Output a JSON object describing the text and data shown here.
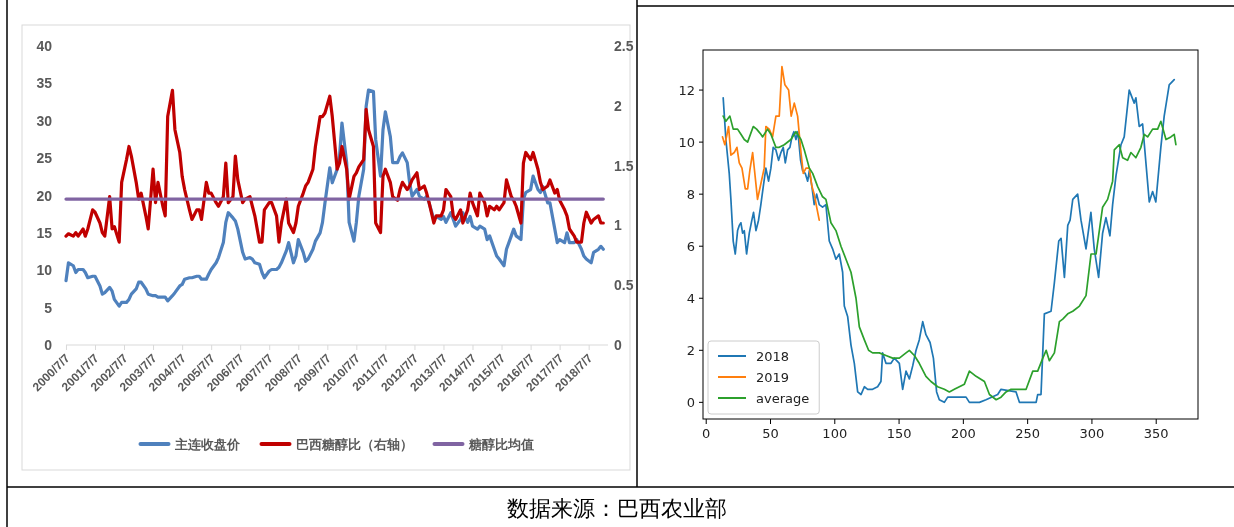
{
  "chart_data": [
    {
      "type": "line",
      "x": [
        "2000-07",
        "2000-08",
        "2000-10",
        "2000-11",
        "2000-12",
        "2001-02",
        "2001-03",
        "2001-04",
        "2001-06",
        "2001-07",
        "2001-09",
        "2001-10",
        "2001-11",
        "2002-01",
        "2002-02",
        "2002-03",
        "2002-05",
        "2002-06",
        "2002-08",
        "2002-09",
        "2002-10",
        "2002-12",
        "2003-01",
        "2003-02",
        "2003-04",
        "2003-05",
        "2003-07",
        "2003-08",
        "2003-09",
        "2003-11",
        "2003-12",
        "2004-01",
        "2004-03",
        "2004-04",
        "2004-06",
        "2004-07",
        "2004-08",
        "2004-10",
        "2004-11",
        "2005-01",
        "2005-02",
        "2005-03",
        "2005-05",
        "2005-06",
        "2005-07",
        "2005-09",
        "2005-10",
        "2005-12",
        "2006-01",
        "2006-02",
        "2006-04",
        "2006-05",
        "2006-06",
        "2006-08",
        "2006-09",
        "2006-11",
        "2006-12",
        "2007-01",
        "2007-03",
        "2007-04",
        "2007-05",
        "2007-07",
        "2007-08",
        "2007-10",
        "2007-11",
        "2007-12",
        "2008-02",
        "2008-03",
        "2008-05",
        "2008-06",
        "2008-07",
        "2008-09",
        "2008-10",
        "2008-11",
        "2009-01",
        "2009-02",
        "2009-04",
        "2009-05",
        "2009-06",
        "2009-08",
        "2009-09",
        "2009-11",
        "2009-12",
        "2010-01",
        "2010-03",
        "2010-04",
        "2010-06",
        "2010-07",
        "2010-08",
        "2010-10",
        "2010-11",
        "2010-12",
        "2011-02",
        "2011-03",
        "2011-05",
        "2011-06",
        "2011-07",
        "2011-09",
        "2011-10",
        "2011-12",
        "2012-01",
        "2012-02",
        "2012-04",
        "2012-05",
        "2012-06",
        "2012-08",
        "2012-09",
        "2012-11",
        "2012-12",
        "2013-01",
        "2013-03",
        "2013-04",
        "2013-06",
        "2013-07",
        "2013-08",
        "2013-10",
        "2013-11",
        "2013-12",
        "2014-02",
        "2014-03",
        "2014-05",
        "2014-06",
        "2014-07",
        "2014-09",
        "2014-10",
        "2014-12",
        "2015-01",
        "2015-02",
        "2015-04",
        "2015-05",
        "2015-06",
        "2015-08",
        "2015-09",
        "2015-11",
        "2015-12",
        "2016-01",
        "2016-03",
        "2016-04",
        "2016-05",
        "2016-07",
        "2016-08",
        "2016-10",
        "2016-11",
        "2016-12",
        "2017-02",
        "2017-03",
        "2017-05",
        "2017-06",
        "2017-07",
        "2017-09",
        "2017-10",
        "2017-11",
        "2018-01",
        "2018-02",
        "2018-04",
        "2018-05",
        "2018-06",
        "2018-08",
        "2018-09",
        "2018-11",
        "2018-12",
        "2019-01"
      ],
      "series": [
        {
          "name": "主连收盘价",
          "color": "#4f81bd",
          "values": [
            8.6,
            11.0,
            10.6,
            9.7,
            10.1,
            10.1,
            9.7,
            9.0,
            9.2,
            9.2,
            7.9,
            6.8,
            7.0,
            7.7,
            7.2,
            6.1,
            5.2,
            5.7,
            5.7,
            6.1,
            6.8,
            7.5,
            8.4,
            8.4,
            7.5,
            6.8,
            6.6,
            6.6,
            6.4,
            6.4,
            6.4,
            5.9,
            6.6,
            7.0,
            7.9,
            8.1,
            8.8,
            9.0,
            9.0,
            9.2,
            9.2,
            8.8,
            8.8,
            9.5,
            10.1,
            11.0,
            11.7,
            13.7,
            16.4,
            17.7,
            17.0,
            16.6,
            15.5,
            12.4,
            11.5,
            11.7,
            11.5,
            11.0,
            10.8,
            9.7,
            9.0,
            9.9,
            10.1,
            10.1,
            10.4,
            11.0,
            12.6,
            13.7,
            11.0,
            11.9,
            14.1,
            12.4,
            11.2,
            11.5,
            12.8,
            13.9,
            15.0,
            16.4,
            19.0,
            23.7,
            21.7,
            23.5,
            25.2,
            29.7,
            24.4,
            16.4,
            13.9,
            16.4,
            19.9,
            23.5,
            31.9,
            34.1,
            33.9,
            27.5,
            22.6,
            28.8,
            31.2,
            27.9,
            24.4,
            24.4,
            25.2,
            25.7,
            24.4,
            21.7,
            19.9,
            20.8,
            19.9,
            19.5,
            19.9,
            19.0,
            16.8,
            17.2,
            16.8,
            17.2,
            16.4,
            17.7,
            16.8,
            15.9,
            16.8,
            17.7,
            16.4,
            17.2,
            15.9,
            15.5,
            15.9,
            15.5,
            14.1,
            14.6,
            12.8,
            11.9,
            11.5,
            10.6,
            12.8,
            14.6,
            15.5,
            14.6,
            14.1,
            19.5,
            20.4,
            20.8,
            22.6,
            20.8,
            20.4,
            21.2,
            19.0,
            19.0,
            15.5,
            13.7,
            14.1,
            13.7,
            15.0,
            13.7,
            13.7,
            14.1,
            12.8,
            11.9,
            11.5,
            11.0,
            12.4,
            12.8,
            13.2,
            12.8
          ]
        },
        {
          "name": "巴西糖醇比（右轴）",
          "color": "#c00000",
          "axis": "y2",
          "values": [
            0.91,
            0.93,
            0.91,
            0.94,
            0.91,
            0.97,
            0.91,
            0.97,
            1.13,
            1.11,
            1.02,
            0.94,
            0.91,
            1.24,
            0.97,
            0.99,
            0.86,
            1.36,
            1.55,
            1.66,
            1.58,
            1.36,
            1.22,
            1.27,
            1.08,
            0.97,
            1.47,
            1.19,
            1.36,
            1.16,
            1.08,
            1.91,
            2.13,
            1.8,
            1.61,
            1.41,
            1.3,
            1.13,
            1.05,
            1.13,
            1.13,
            1.05,
            1.36,
            1.27,
            1.27,
            1.19,
            1.16,
            1.24,
            1.52,
            1.19,
            1.24,
            1.58,
            1.38,
            1.19,
            1.22,
            1.24,
            1.16,
            1.08,
            0.86,
            0.86,
            1.13,
            1.19,
            1.19,
            1.08,
            0.86,
            1.02,
            1.22,
            1.02,
            0.94,
            1.02,
            1.16,
            1.27,
            1.33,
            1.36,
            1.47,
            1.66,
            1.91,
            1.91,
            1.94,
            2.08,
            1.91,
            1.47,
            1.52,
            1.66,
            1.47,
            1.22,
            1.41,
            1.44,
            1.49,
            1.55,
            1.97,
            1.8,
            1.66,
            1.02,
            0.94,
            1.41,
            1.47,
            1.36,
            1.24,
            1.21,
            1.3,
            1.36,
            1.3,
            1.33,
            1.38,
            1.44,
            1.3,
            1.33,
            1.27,
            1.19,
            1.02,
            1.08,
            1.08,
            1.13,
            1.3,
            1.24,
            1.08,
            1.05,
            1.13,
            1.02,
            1.13,
            1.27,
            1.19,
            1.08,
            1.27,
            1.19,
            1.08,
            1.16,
            1.13,
            1.16,
            1.13,
            1.19,
            1.38,
            1.24,
            1.21,
            1.16,
            1.02,
            1.52,
            1.61,
            1.55,
            1.61,
            1.47,
            1.36,
            1.3,
            1.33,
            1.38,
            1.27,
            1.3,
            1.21,
            1.13,
            1.08,
            0.97,
            0.91,
            0.86,
            0.86,
            1.02,
            1.11,
            1.02,
            1.05,
            1.08,
            1.02,
            1.02
          ]
        },
        {
          "name": "糖醇比均值",
          "color": "#8064a2",
          "axis": "y2",
          "x": [
            "2000-07",
            "2019-01"
          ],
          "values": [
            1.22,
            1.22
          ]
        }
      ],
      "xlim": [
        "2000-07-01",
        "2019-03-01"
      ],
      "xticks": [
        {
          "value": "2000-07-07",
          "label": "2000/7/7"
        },
        {
          "value": "2001-07-07",
          "label": "2001/7/7"
        },
        {
          "value": "2002-07-07",
          "label": "2002/7/7"
        },
        {
          "value": "2003-07-07",
          "label": "2003/7/7"
        },
        {
          "value": "2004-07-07",
          "label": "2004/7/7"
        },
        {
          "value": "2005-07-07",
          "label": "2005/7/7"
        },
        {
          "value": "2006-07-07",
          "label": "2006/7/7"
        },
        {
          "value": "2007-07-07",
          "label": "2007/7/7"
        },
        {
          "value": "2008-07-07",
          "label": "2008/7/7"
        },
        {
          "value": "2009-07-07",
          "label": "2009/7/7"
        },
        {
          "value": "2010-07-07",
          "label": "2010/7/7"
        },
        {
          "value": "2011-07-07",
          "label": "2011/7/7"
        },
        {
          "value": "2012-07-07",
          "label": "2012/7/7"
        },
        {
          "value": "2013-07-07",
          "label": "2013/7/7"
        },
        {
          "value": "2014-07-07",
          "label": "2014/7/7"
        },
        {
          "value": "2015-07-07",
          "label": "2015/7/7"
        },
        {
          "value": "2016-07-07",
          "label": "2016/7/7"
        },
        {
          "value": "2017-07-07",
          "label": "2017/7/7"
        },
        {
          "value": "2018-07-07",
          "label": "2018/7/7"
        }
      ],
      "ylim": [
        0,
        40
      ],
      "yticks": [
        0,
        5,
        10,
        15,
        20,
        25,
        30,
        35,
        40
      ],
      "y2lim": [
        0,
        2.5
      ],
      "y2ticks": [
        0,
        0.5,
        1,
        1.5,
        2,
        2.5
      ],
      "legend": "bottom",
      "annotations": [
        "数据来源：巴西农业部"
      ]
    },
    {
      "type": "line",
      "series": [
        {
          "name": "2018",
          "color": "#1f77b4",
          "x": [
            13.2,
            15.3,
            17.9,
            19.2,
            21.0,
            22.6,
            24.4,
            25.7,
            27.0,
            28.3,
            29.6,
            31.4,
            33.5,
            35.5,
            36.8,
            38.7,
            40.7,
            42.5,
            44.4,
            46.4,
            48.5,
            50.3,
            52.1,
            54.2,
            56.3,
            58.1,
            59.9,
            61.5,
            63.3,
            65.1,
            66.7,
            68.2,
            69.8,
            71.3,
            73.4,
            75.0,
            77.0,
            78.9,
            80.2,
            82.2,
            84.0,
            85.9,
            87.9,
            90.5,
            93.1,
            95.7,
            98.3,
            100.9,
            103.5,
            106.1,
            107.4,
            110.0,
            112.6,
            115.2,
            117.8,
            120.4,
            123.0,
            125.6,
            129.4,
            133.3,
            135.9,
            137.2,
            139.8,
            143.7,
            146.3,
            150.2,
            152.8,
            155.4,
            158.0,
            160.6,
            163.2,
            165.7,
            168.4,
            170.9,
            174.1,
            176.7,
            179.2,
            181.3,
            185.2,
            187.8,
            202.1,
            204.7,
            212.5,
            217.6,
            226.7,
            229.3,
            241.0,
            243.6,
            256.6,
            257.8,
            260.4,
            263.0,
            268.2,
            270.8,
            274.2,
            276.0,
            278.6,
            281.2,
            283.0,
            285.1,
            288.9,
            291.5,
            295.4,
            299.2,
            301.8,
            305.2,
            308.3,
            310.9,
            314.0,
            316.1,
            318.7,
            322.6,
            325.1,
            329.0,
            332.9,
            334.2,
            336.8,
            339.4,
            344.6,
            347.2,
            349.7,
            353.6,
            356.2,
            360.1,
            364.0
          ],
          "values": [
            11.7,
            10.1,
            8.8,
            7.8,
            6.2,
            5.7,
            6.6,
            6.8,
            6.9,
            6.5,
            6.6,
            5.7,
            6.5,
            7.0,
            7.3,
            6.6,
            7.0,
            7.6,
            8.3,
            9.0,
            8.5,
            9.0,
            9.8,
            9.7,
            9.3,
            9.6,
            9.8,
            9.2,
            9.7,
            9.8,
            10.2,
            10.4,
            10.1,
            10.4,
            9.3,
            8.9,
            8.8,
            8.5,
            8.9,
            8.3,
            7.6,
            8.0,
            7.6,
            7.5,
            7.6,
            6.2,
            5.9,
            5.5,
            5.7,
            5.0,
            3.7,
            3.3,
            2.2,
            1.5,
            0.4,
            0.3,
            0.6,
            0.5,
            0.5,
            0.6,
            0.8,
            1.9,
            1.5,
            1.5,
            1.7,
            1.5,
            0.5,
            1.2,
            0.9,
            1.4,
            2.0,
            2.4,
            3.1,
            2.6,
            2.3,
            1.7,
            0.4,
            0.1,
            0.0,
            0.2,
            0.2,
            0.0,
            0.0,
            0.1,
            0.3,
            0.5,
            0.4,
            0.0,
            0.0,
            0.3,
            0.3,
            3.4,
            3.5,
            4.6,
            6.2,
            6.3,
            4.8,
            6.8,
            7.0,
            7.8,
            8.0,
            7.0,
            5.9,
            7.3,
            5.9,
            4.8,
            6.5,
            7.1,
            6.4,
            7.6,
            8.7,
            9.9,
            10.2,
            12.0,
            11.5,
            11.7,
            10.6,
            10.7,
            7.7,
            8.1,
            7.7,
            9.8,
            11.0,
            12.2,
            12.4
          ]
        },
        {
          "name": "2019",
          "color": "#ff7f0e",
          "x": [
            12.7,
            14.5,
            17.4,
            19.2,
            21.8,
            23.9,
            25.7,
            27.8,
            30.4,
            32.2,
            33.9,
            36.1,
            37.6,
            39.9,
            42.5,
            45.1,
            46.4,
            49.0,
            51.6,
            54.2,
            56.8,
            58.9,
            61.2,
            64.1,
            66.1,
            68.5,
            71.1,
            73.7,
            75.5,
            77.6,
            80.2,
            82.2,
            84.0,
            85.9,
            87.9
          ],
          "values": [
            10.2,
            9.9,
            10.6,
            9.5,
            9.6,
            9.8,
            9.2,
            9.0,
            8.2,
            8.2,
            8.9,
            9.6,
            8.9,
            7.8,
            8.4,
            9.0,
            10.6,
            10.5,
            10.2,
            11.0,
            11.0,
            12.9,
            12.2,
            12.0,
            11.0,
            11.5,
            11.0,
            9.6,
            8.8,
            9.0,
            9.0,
            8.3,
            8.0,
            7.5,
            7.0
          ]
        },
        {
          "name": "average",
          "color": "#2ca02c",
          "x": [
            13.2,
            15.3,
            18.4,
            21.0,
            24.4,
            27.0,
            29.6,
            32.2,
            36.6,
            39.2,
            42.5,
            43.9,
            47.7,
            50.3,
            54.2,
            56.8,
            60.7,
            65.9,
            69.8,
            73.7,
            76.3,
            80.2,
            82.8,
            86.6,
            90.5,
            93.1,
            97.0,
            100.9,
            104.8,
            108.7,
            112.6,
            116.5,
            119.1,
            123.0,
            126.3,
            129.4,
            134.6,
            139.8,
            145.0,
            150.2,
            155.4,
            158.0,
            161.9,
            165.7,
            170.9,
            174.8,
            180.0,
            185.2,
            189.1,
            193.0,
            196.9,
            200.8,
            204.7,
            209.9,
            216.4,
            220.3,
            225.5,
            229.3,
            233.2,
            237.1,
            243.6,
            248.8,
            254.0,
            257.8,
            261.8,
            264.4,
            266.9,
            270.8,
            274.7,
            277.3,
            281.2,
            285.1,
            290.3,
            295.4,
            299.3,
            303.2,
            308.3,
            312.2,
            316.1,
            317.4,
            321.2,
            323.9,
            327.7,
            330.3,
            334.2,
            338.1,
            340.7,
            343.3,
            347.2,
            351.1,
            353.6,
            357.6,
            361.4,
            364.0,
            365.3
          ],
          "values": [
            11.0,
            10.8,
            11.0,
            10.5,
            10.5,
            10.3,
            10.1,
            10.0,
            10.6,
            10.5,
            10.3,
            10.2,
            10.5,
            10.3,
            9.8,
            9.8,
            9.9,
            10.1,
            10.4,
            10.1,
            9.7,
            9.0,
            8.8,
            8.3,
            7.9,
            7.8,
            6.9,
            6.6,
            6.0,
            5.5,
            5.0,
            4.0,
            2.9,
            2.4,
            2.0,
            1.9,
            1.9,
            1.8,
            1.7,
            1.7,
            1.9,
            2.0,
            1.8,
            1.5,
            1.0,
            0.8,
            0.6,
            0.5,
            0.4,
            0.5,
            0.6,
            0.7,
            1.2,
            1.0,
            0.8,
            0.3,
            0.1,
            0.2,
            0.4,
            0.5,
            0.5,
            0.5,
            1.2,
            1.2,
            1.7,
            2.0,
            1.6,
            1.9,
            3.1,
            3.2,
            3.4,
            3.5,
            3.7,
            4.1,
            5.7,
            5.7,
            7.5,
            7.8,
            8.5,
            9.7,
            9.9,
            9.4,
            9.3,
            9.6,
            9.4,
            9.8,
            10.3,
            10.2,
            10.5,
            10.5,
            10.8,
            10.1,
            10.2,
            10.3,
            9.9
          ]
        }
      ],
      "xlim": [
        -2.5,
        382.5
      ],
      "xticks": [
        0,
        50,
        100,
        150,
        200,
        250,
        300,
        350
      ],
      "ylim": [
        -0.64,
        13.54
      ],
      "yticks": [
        0,
        2,
        4,
        6,
        8,
        10,
        12
      ],
      "legend": "bottom left"
    }
  ]
}
